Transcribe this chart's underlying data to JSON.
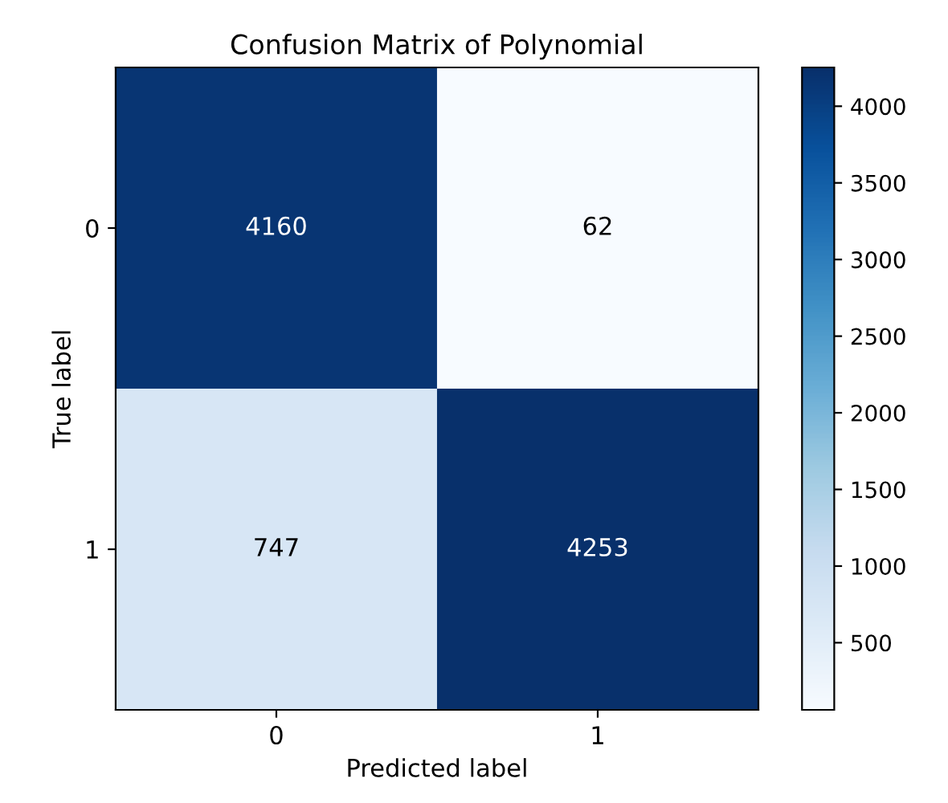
{
  "chart_data": {
    "type": "heatmap",
    "title": "Confusion Matrix of Polynomial",
    "xlabel": "Predicted label",
    "ylabel": "True label",
    "categories": [
      "0",
      "1"
    ],
    "y_categories": [
      "0",
      "1"
    ],
    "cells": [
      [
        4160,
        62
      ],
      [
        747,
        4253
      ]
    ],
    "clim": [
      62,
      4253
    ],
    "cticks": [
      500,
      1000,
      1500,
      2000,
      2500,
      3000,
      3500,
      4000
    ],
    "data_labels": true
  }
}
